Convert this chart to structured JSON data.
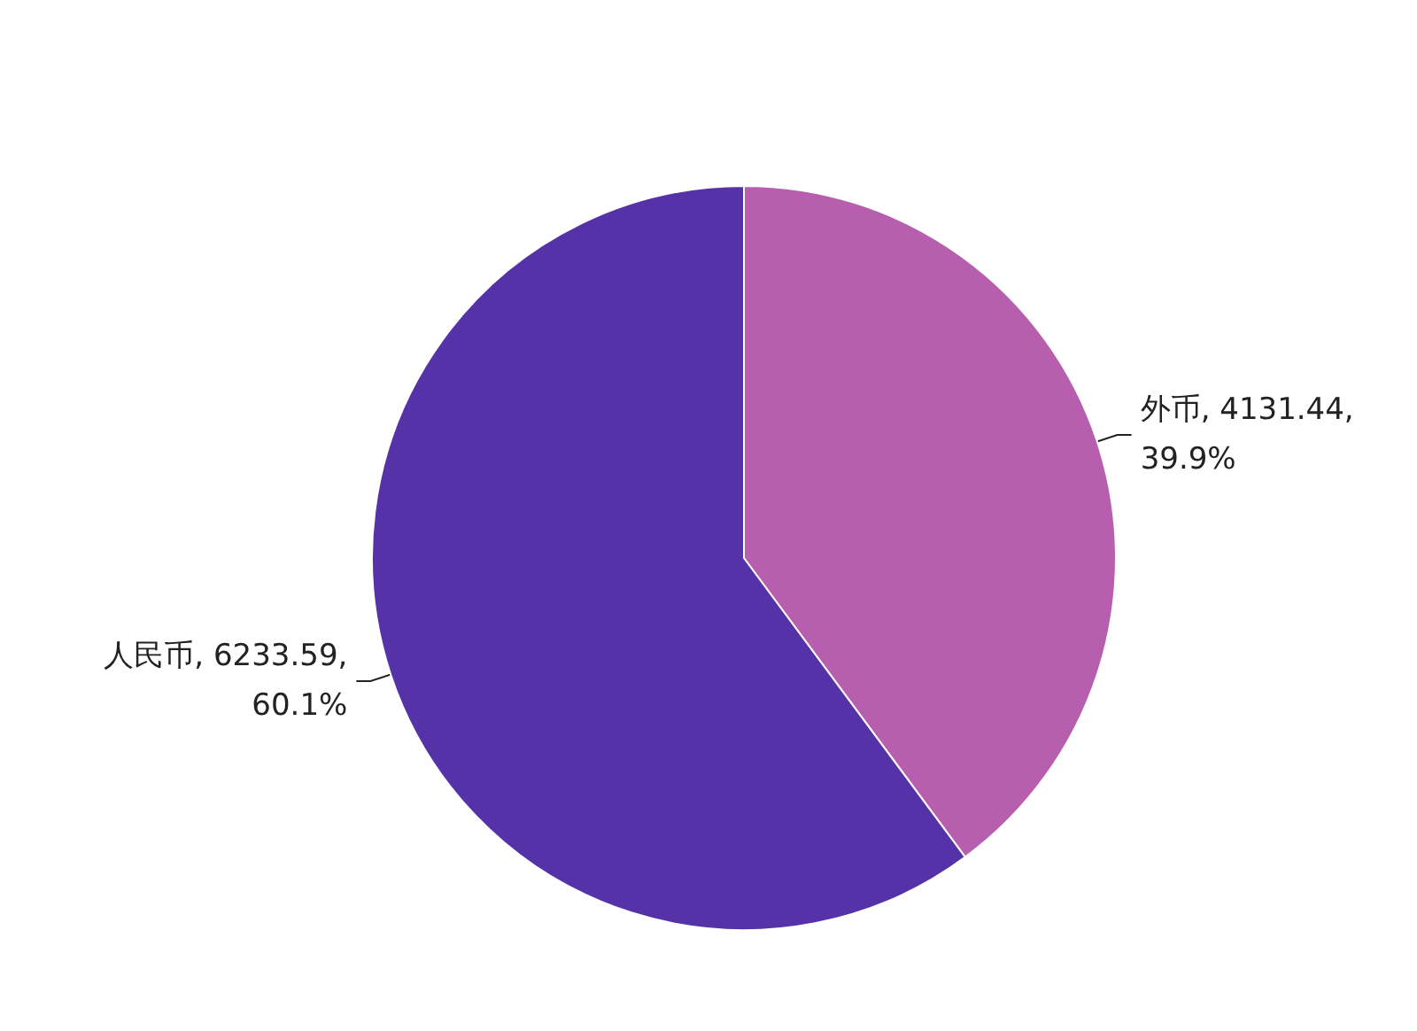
{
  "chart_data": {
    "type": "pie",
    "categories": [
      "外币",
      "人民币"
    ],
    "values": [
      4131.44,
      6233.59
    ],
    "colors": [
      "#b75fae",
      "#5532a8"
    ],
    "value_labels": [
      "4131.44, 39.9%",
      "6233.59, 60.1%"
    ],
    "legend": false
  }
}
